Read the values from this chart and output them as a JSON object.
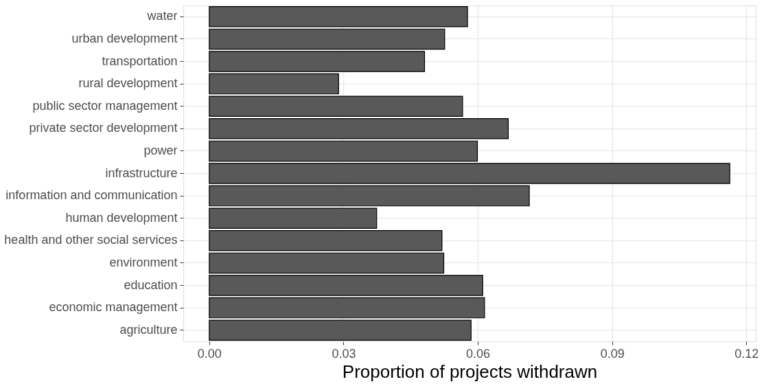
{
  "chart_data": {
    "type": "bar",
    "orientation": "horizontal",
    "xlabel": "Proportion of projects withdrawn",
    "categories": [
      "water",
      "urban development",
      "transportation",
      "rural development",
      "public sector management",
      "private sector development",
      "power",
      "infrastructure",
      "information and communication",
      "human development",
      "health and other social services",
      "environment",
      "education",
      "economic management",
      "agriculture"
    ],
    "values": [
      0.0577,
      0.0526,
      0.0481,
      0.0289,
      0.0566,
      0.0668,
      0.0599,
      0.1163,
      0.0715,
      0.0374,
      0.052,
      0.0524,
      0.0611,
      0.0615,
      0.0585
    ],
    "color": "#595959",
    "xlim": [
      -0.0058,
      0.1221
    ],
    "xticks": [
      {
        "value": 0,
        "label": "0.00"
      },
      {
        "value": 0.03,
        "label": "0.03"
      },
      {
        "value": 0.06,
        "label": "0.06"
      },
      {
        "value": 0.09,
        "label": "0.09"
      },
      {
        "value": 0.12,
        "label": "0.12"
      }
    ],
    "grid": true
  }
}
